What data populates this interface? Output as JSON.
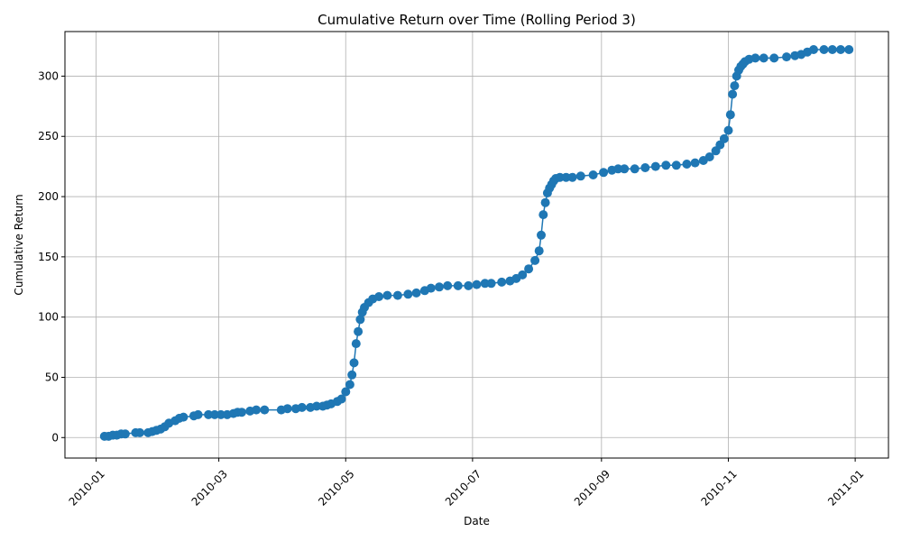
{
  "chart_data": {
    "type": "line",
    "title": "Cumulative Return over Time (Rolling Period 3)",
    "xlabel": "Date",
    "ylabel": "Cumulative Return",
    "x_ticks": [
      "2010-01",
      "2010-03",
      "2010-05",
      "2010-07",
      "2010-09",
      "2010-11",
      "2011-01"
    ],
    "x_tick_dates": [
      "2010-01-01",
      "2010-03-01",
      "2010-05-01",
      "2010-07-01",
      "2010-09-01",
      "2010-11-01",
      "2011-01-01"
    ],
    "y_ticks": [
      0,
      50,
      100,
      150,
      200,
      250,
      300
    ],
    "xlim": [
      "2009-12-17",
      "2011-01-17"
    ],
    "ylim": [
      -17,
      337
    ],
    "grid": true,
    "marker": "circle",
    "color": "#1f77b4",
    "series": [
      {
        "x": [
          "2010-01-05",
          "2010-01-07",
          "2010-01-09",
          "2010-01-11",
          "2010-01-13",
          "2010-01-15",
          "2010-01-20",
          "2010-01-22",
          "2010-01-26",
          "2010-01-28",
          "2010-01-30",
          "2010-02-01",
          "2010-02-03",
          "2010-02-05",
          "2010-02-08",
          "2010-02-10",
          "2010-02-12",
          "2010-02-17",
          "2010-02-19",
          "2010-02-24",
          "2010-02-27",
          "2010-03-02",
          "2010-03-05",
          "2010-03-08",
          "2010-03-10",
          "2010-03-12",
          "2010-03-16",
          "2010-03-19",
          "2010-03-23",
          "2010-03-31",
          "2010-04-03",
          "2010-04-07",
          "2010-04-10",
          "2010-04-14",
          "2010-04-17",
          "2010-04-20",
          "2010-04-22",
          "2010-04-24",
          "2010-04-27",
          "2010-04-29",
          "2010-05-01",
          "2010-05-03",
          "2010-05-04",
          "2010-05-05",
          "2010-05-06",
          "2010-05-07",
          "2010-05-08",
          "2010-05-09",
          "2010-05-10",
          "2010-05-12",
          "2010-05-14",
          "2010-05-17",
          "2010-05-21",
          "2010-05-26",
          "2010-05-31",
          "2010-06-04",
          "2010-06-08",
          "2010-06-11",
          "2010-06-15",
          "2010-06-19",
          "2010-06-24",
          "2010-06-29",
          "2010-07-03",
          "2010-07-07",
          "2010-07-10",
          "2010-07-15",
          "2010-07-19",
          "2010-07-22",
          "2010-07-25",
          "2010-07-28",
          "2010-07-31",
          "2010-08-02",
          "2010-08-03",
          "2010-08-04",
          "2010-08-05",
          "2010-08-06",
          "2010-08-07",
          "2010-08-08",
          "2010-08-09",
          "2010-08-10",
          "2010-08-12",
          "2010-08-15",
          "2010-08-18",
          "2010-08-22",
          "2010-08-28",
          "2010-09-02",
          "2010-09-06",
          "2010-09-09",
          "2010-09-12",
          "2010-09-17",
          "2010-09-22",
          "2010-09-27",
          "2010-10-02",
          "2010-10-07",
          "2010-10-12",
          "2010-10-16",
          "2010-10-20",
          "2010-10-23",
          "2010-10-26",
          "2010-10-28",
          "2010-10-30",
          "2010-11-01",
          "2010-11-02",
          "2010-11-03",
          "2010-11-04",
          "2010-11-05",
          "2010-11-06",
          "2010-11-07",
          "2010-11-08",
          "2010-11-09",
          "2010-11-11",
          "2010-11-14",
          "2010-11-18",
          "2010-11-23",
          "2010-11-29",
          "2010-12-03",
          "2010-12-06",
          "2010-12-09",
          "2010-12-12",
          "2010-12-17",
          "2010-12-21",
          "2010-12-25",
          "2010-12-29"
        ],
        "y": [
          1,
          1,
          2,
          2,
          3,
          3,
          4,
          4,
          4,
          5,
          6,
          7,
          9,
          12,
          14,
          16,
          17,
          18,
          19,
          19,
          19,
          19,
          19,
          20,
          21,
          21,
          22,
          23,
          23,
          23,
          24,
          24,
          25,
          25,
          26,
          26,
          27,
          28,
          30,
          32,
          38,
          44,
          52,
          62,
          78,
          88,
          98,
          104,
          108,
          112,
          115,
          117,
          118,
          118,
          119,
          120,
          122,
          124,
          125,
          126,
          126,
          126,
          127,
          128,
          128,
          129,
          130,
          132,
          135,
          140,
          147,
          155,
          168,
          185,
          195,
          203,
          207,
          210,
          213,
          215,
          216,
          216,
          216,
          217,
          218,
          220,
          222,
          223,
          223,
          223,
          224,
          225,
          226,
          226,
          227,
          228,
          230,
          233,
          238,
          243,
          248,
          255,
          268,
          285,
          292,
          300,
          305,
          308,
          310,
          312,
          314,
          315,
          315,
          315,
          316,
          317,
          318,
          320,
          322,
          322,
          322,
          322,
          322
        ]
      }
    ]
  }
}
